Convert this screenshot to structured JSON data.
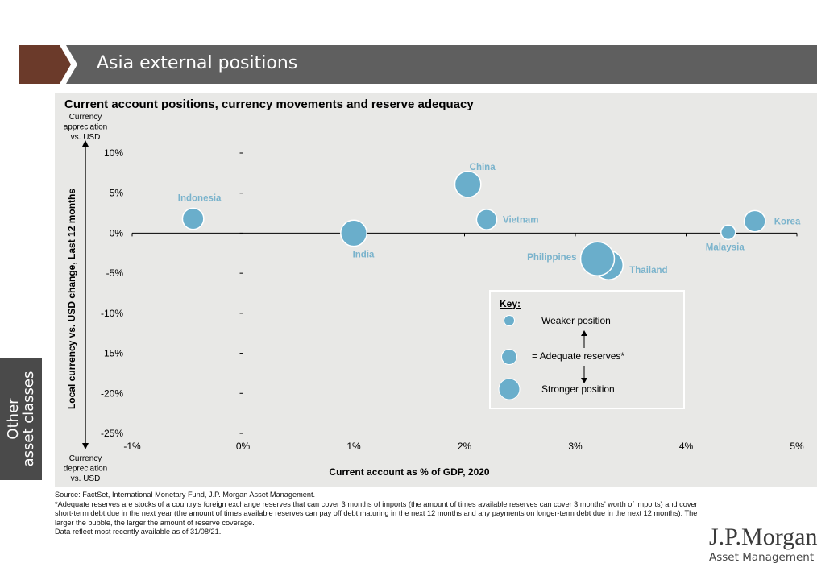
{
  "header": {
    "title": "Asia external positions"
  },
  "side_tab": {
    "line1": "Other",
    "line2": "asset classes"
  },
  "axis_notes": {
    "top": [
      "Currency",
      "appreciation",
      "vs. USD"
    ],
    "bottom": [
      "Currency",
      "depreciation",
      "vs. USD"
    ]
  },
  "key": {
    "heading": "Key:",
    "weaker": "Weaker position",
    "adequate": "= Adequate reserves*",
    "stronger": "Stronger position"
  },
  "chart_data": {
    "type": "scatter",
    "title": "Current account positions, currency movements and reserve adequacy",
    "xlabel": "Current account as % of GDP, 2020",
    "ylabel": "Local currency vs. USD change, Last 12 months",
    "xlim": [
      -1,
      5
    ],
    "ylim": [
      -25,
      10
    ],
    "x_ticks": [
      -1,
      0,
      1,
      2,
      3,
      4,
      5
    ],
    "x_tick_labels": [
      "-1%",
      "0%",
      "1%",
      "2%",
      "3%",
      "4%",
      "5%"
    ],
    "y_ticks": [
      10,
      5,
      0,
      -5,
      -10,
      -15,
      -20,
      -25
    ],
    "y_tick_labels": [
      "10%",
      "5%",
      "0%",
      "-5%",
      "-10%",
      "-15%",
      "-20%",
      "-25%"
    ],
    "bubble_color": "#6aaecb",
    "label_color": "#7ab3cc",
    "points": [
      {
        "name": "Indonesia",
        "x": -0.45,
        "y": 1.8,
        "size": 1.1
      },
      {
        "name": "India",
        "x": 1.0,
        "y": 0.0,
        "size": 1.35
      },
      {
        "name": "China",
        "x": 2.03,
        "y": 6.1,
        "size": 1.35
      },
      {
        "name": "Vietnam",
        "x": 2.2,
        "y": 1.7,
        "size": 1.05
      },
      {
        "name": "Thailand",
        "x": 3.3,
        "y": -4.0,
        "size": 1.5
      },
      {
        "name": "Philippines",
        "x": 3.2,
        "y": -3.2,
        "size": 1.75
      },
      {
        "name": "Malaysia",
        "x": 4.38,
        "y": 0.1,
        "size": 0.75
      },
      {
        "name": "Korea",
        "x": 4.62,
        "y": 1.5,
        "size": 1.1
      }
    ]
  },
  "footnotes": [
    "Source: FactSet, International Monetary Fund, J.P. Morgan Asset Management.",
    "*Adequate reserves are stocks of a country's foreign exchange reserves that can cover 3 months of imports (the amount of times available reserves can cover 3 months' worth of imports) and cover short-term debt due in the next year (the amount of times available reserves can pay off debt maturing in the next 12 months and any payments on longer-term debt due in the next 12 months). The larger the bubble, the larger the amount of reserve coverage.",
    "Data reflect most recently available as of 31/08/21."
  ],
  "logo": {
    "main": "J.P.Morgan",
    "sub": "Asset Management"
  }
}
